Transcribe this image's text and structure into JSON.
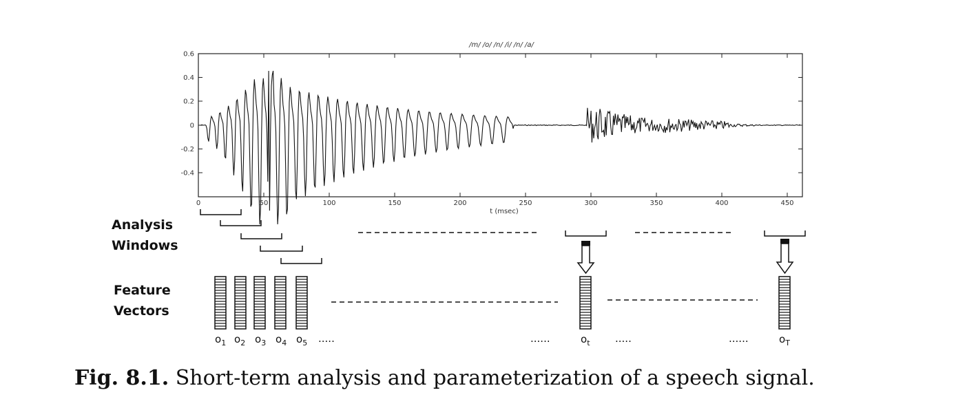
{
  "plot": {
    "title": "/m/ /o/ /n/ /i/ /n/ /a/",
    "xlabel": "t (msec)",
    "yticks": [
      "0.6",
      "0.4",
      "0.2",
      "0",
      "-0.2",
      "-0.4"
    ],
    "xticks": [
      "0",
      "50",
      "100",
      "150",
      "200",
      "250",
      "300",
      "350",
      "400",
      "450"
    ]
  },
  "labels": {
    "analysis_line1": "Analysis",
    "analysis_line2": "Windows",
    "feature_line1": "Feature",
    "feature_line2": "Vectors"
  },
  "vectors": [
    {
      "base": "o",
      "sub": "1"
    },
    {
      "base": "o",
      "sub": "2"
    },
    {
      "base": "o",
      "sub": "3"
    },
    {
      "base": "o",
      "sub": "4"
    },
    {
      "base": "o",
      "sub": "5"
    },
    {
      "base": "o",
      "sub": "t"
    },
    {
      "base": "o",
      "sub": "T"
    }
  ],
  "ellipsis": ".....",
  "ellipsis_long": "......",
  "caption": {
    "label": "Fig. 8.1.",
    "text": "Short-term analysis and parameterization of a speech signal."
  }
}
